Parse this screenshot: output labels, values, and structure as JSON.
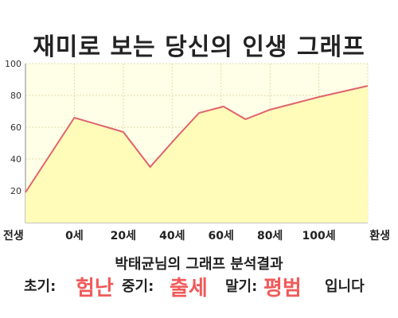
{
  "title": "재미로 보는 당신의 인생 그래프",
  "chart_data": {
    "type": "area",
    "x_tick_labels": [
      "전생",
      "0세",
      "20세",
      "40세",
      "60세",
      "80세",
      "100세",
      "환생"
    ],
    "y_ticks": [
      20,
      40,
      60,
      80,
      100
    ],
    "ylim": [
      0,
      100
    ],
    "points": [
      {
        "x": 0,
        "y": 19
      },
      {
        "x": 1,
        "y": 66
      },
      {
        "x": 2,
        "y": 57
      },
      {
        "x": 2.55,
        "y": 35
      },
      {
        "x": 3.1,
        "y": 54
      },
      {
        "x": 3.55,
        "y": 69
      },
      {
        "x": 4.05,
        "y": 73
      },
      {
        "x": 4.5,
        "y": 65
      },
      {
        "x": 5,
        "y": 71
      },
      {
        "x": 6,
        "y": 79
      },
      {
        "x": 7,
        "y": 86
      }
    ],
    "grid": true,
    "fill_color": "#fffbb8",
    "line_color": "#e0636e"
  },
  "analysis": {
    "heading": "박태균님의 그래프 분석결과",
    "early_label": "초기:",
    "early_value": "험난",
    "middle_label": "중기:",
    "middle_value": "출세",
    "late_label": "말기:",
    "late_value": "평범",
    "ending": "입니다"
  },
  "colors": {
    "highlight": "#f05a5a"
  }
}
